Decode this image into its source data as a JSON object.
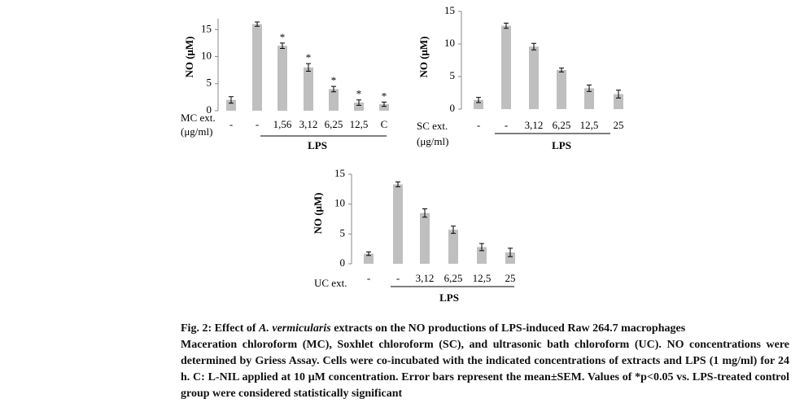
{
  "chart_data": [
    {
      "type": "bar",
      "ylabel": "NO (μM)",
      "categories": [
        "-",
        "-",
        "1,56",
        "3,12",
        "6,25",
        "12,5",
        "C"
      ],
      "values": [
        2.0,
        16.0,
        12.0,
        8.0,
        4.0,
        1.5,
        1.2
      ],
      "errors": [
        0.6,
        0.4,
        0.5,
        0.7,
        0.5,
        0.5,
        0.4
      ],
      "markers": [
        null,
        null,
        "*",
        "*",
        "*",
        "*",
        "*"
      ],
      "ylim": [
        0,
        17
      ],
      "yticks": [
        0,
        5,
        10,
        15
      ],
      "color": "#bfbfbf",
      "group_label": [
        "MC ext.",
        "(μg/ml)"
      ],
      "bracket_label": "LPS"
    },
    {
      "type": "bar",
      "ylabel": "NO (μM)",
      "categories": [
        "-",
        "-",
        "3,12",
        "6,25",
        "12,5",
        "25"
      ],
      "values": [
        1.4,
        12.8,
        9.6,
        6.0,
        3.2,
        2.3
      ],
      "errors": [
        0.4,
        0.4,
        0.5,
        0.3,
        0.5,
        0.6
      ],
      "ylim": [
        0,
        15
      ],
      "yticks": [
        0,
        5,
        10,
        15
      ],
      "color": "#bfbfbf",
      "group_label": [
        "SC ext.",
        "(μg/ml)"
      ],
      "bracket_label": "LPS"
    },
    {
      "type": "bar",
      "ylabel": "NO (μM)",
      "categories": [
        "-",
        "-",
        "3,12",
        "6,25",
        "12,5",
        "25"
      ],
      "values": [
        1.7,
        13.3,
        8.5,
        5.7,
        2.8,
        1.9
      ],
      "errors": [
        0.3,
        0.4,
        0.7,
        0.6,
        0.6,
        0.7
      ],
      "ylim": [
        0,
        15
      ],
      "yticks": [
        0,
        5,
        10,
        15
      ],
      "color": "#bfbfbf",
      "group_label": [
        "UC ext."
      ],
      "bracket_label": "LPS"
    }
  ],
  "caption": {
    "title": [
      "Fig. 2: Effect of ",
      "A. vermicularis",
      " extracts on the NO productions of LPS-induced Raw 264.7 macrophages"
    ],
    "body": "Maceration chloroform (MC), Soxhlet chloroform (SC), and ultrasonic bath chloroform (UC). NO concentrations were determined by Griess Assay. Cells were co-incubated with the indicated concentrations of extracts and LPS (1 mg/ml) for 24 h. C: L-NIL applied at 10 μM concentration. Error bars represent the mean±SEM. Values of *p<0.05 vs. LPS-treated control group were considered statistically significant"
  }
}
